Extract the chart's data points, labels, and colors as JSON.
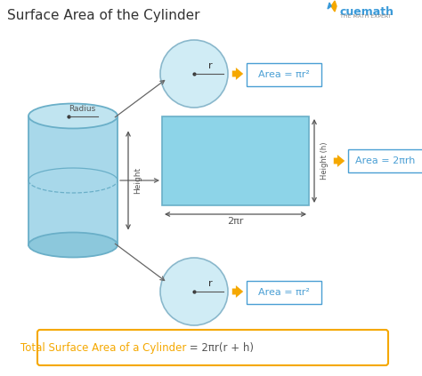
{
  "title": "Surface Area of the Cylinder",
  "title_fontsize": 11,
  "title_color": "#333333",
  "bg_color": "#ffffff",
  "cylinder_fill": "#a8d8ea",
  "cylinder_fill_dark": "#8cc8dc",
  "cylinder_top_fill": "#c0e4f0",
  "cylinder_edge": "#6aafc8",
  "rect_fill": "#8dd4e8",
  "rect_edge": "#6aafc8",
  "circle_fill": "#d0ecf5",
  "circle_edge": "#8ab8cc",
  "arrow_orange": "#f5a800",
  "box_edge": "#4a9fd4",
  "box_fill": "#ffffff",
  "dim_color": "#555555",
  "label_color": "#555555",
  "formula_box_edge": "#f5a800",
  "formula_box_fill": "#ffffff",
  "formula_text_color": "#f5a800",
  "formula_text_part1": "Total Surface Area of a Cylinder",
  "formula_text_part2": " = 2πr(r + h)",
  "area_top": "Area = πr²",
  "area_side": "Area = 2πrh",
  "area_bottom": "Area = πr²",
  "label_radius": "Radius",
  "label_height_cyl": "Height",
  "label_height_rect": "Height (h)",
  "label_width_rect": "2πr",
  "label_r": "r",
  "cuemath_text": "cuemath",
  "cuemath_sub": "THE MATH EXPERT"
}
